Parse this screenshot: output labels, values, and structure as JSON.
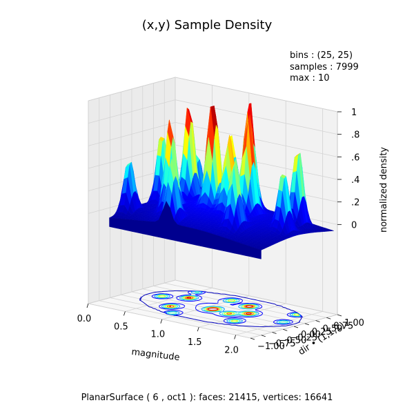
{
  "chart_data": {
    "type": "surface3d",
    "title": "(x,y) Sample Density",
    "info": [
      "bins : (25, 25)",
      "samples : 7999",
      "max : 10"
    ],
    "xlabel": "magnitude",
    "ylabel": "dir • (1,1,1)",
    "zlabel": "normalized density",
    "xlim": [
      0.0,
      2.2
    ],
    "ylim": [
      -1.0,
      1.0
    ],
    "zlim": [
      -0.8,
      1.0
    ],
    "x_ticks": [
      0.0,
      0.5,
      1.0,
      1.5,
      2.0
    ],
    "x_tick_labels": [
      "0.0",
      "0.5",
      "1.0",
      "1.5",
      "2.0"
    ],
    "y_ticks": [
      -1.0,
      -0.75,
      -0.5,
      -0.25,
      0.0,
      0.25,
      0.5,
      0.75,
      1.0
    ],
    "y_tick_labels": [
      "−1.00",
      "−0.75",
      "−0.50",
      "−0.25",
      "0.00",
      "0.25",
      "0.50",
      "0.75",
      "1.00"
    ],
    "z_ticks": [
      0,
      0.2,
      0.4,
      0.6,
      0.8,
      1.0
    ],
    "z_tick_labels": [
      "0",
      ".2",
      ".4",
      ".6",
      ".8",
      "1"
    ],
    "colormap": [
      "#00008f",
      "#0000ff",
      "#00ffff",
      "#ffff00",
      "#ff0000",
      "#800000"
    ],
    "surface_floor": -0.08,
    "contour_z": -0.8,
    "grid": true,
    "peaks": [
      {
        "x": 1.1,
        "y": 0.0,
        "h": 1.0
      },
      {
        "x": 1.3,
        "y": 0.5,
        "h": 0.9
      },
      {
        "x": 0.6,
        "y": 0.3,
        "h": 0.8
      },
      {
        "x": 0.7,
        "y": -0.3,
        "h": 0.75
      },
      {
        "x": 1.5,
        "y": 0.15,
        "h": 0.8
      },
      {
        "x": 1.9,
        "y": 0.6,
        "h": 0.65
      },
      {
        "x": 0.35,
        "y": 0.1,
        "h": 0.6
      },
      {
        "x": 1.0,
        "y": 0.6,
        "h": 0.55
      },
      {
        "x": 1.6,
        "y": -0.35,
        "h": 0.55
      },
      {
        "x": 0.9,
        "y": -0.6,
        "h": 0.5
      },
      {
        "x": 2.0,
        "y": 0.1,
        "h": 0.5
      },
      {
        "x": 0.2,
        "y": -0.4,
        "h": 0.45
      },
      {
        "x": 1.35,
        "y": -0.05,
        "h": 0.6
      },
      {
        "x": 0.5,
        "y": 0.65,
        "h": 0.4
      }
    ]
  },
  "caption": "PlanarSurface ( 6 , oct1 ):  faces: 21415,  vertices: 16641"
}
